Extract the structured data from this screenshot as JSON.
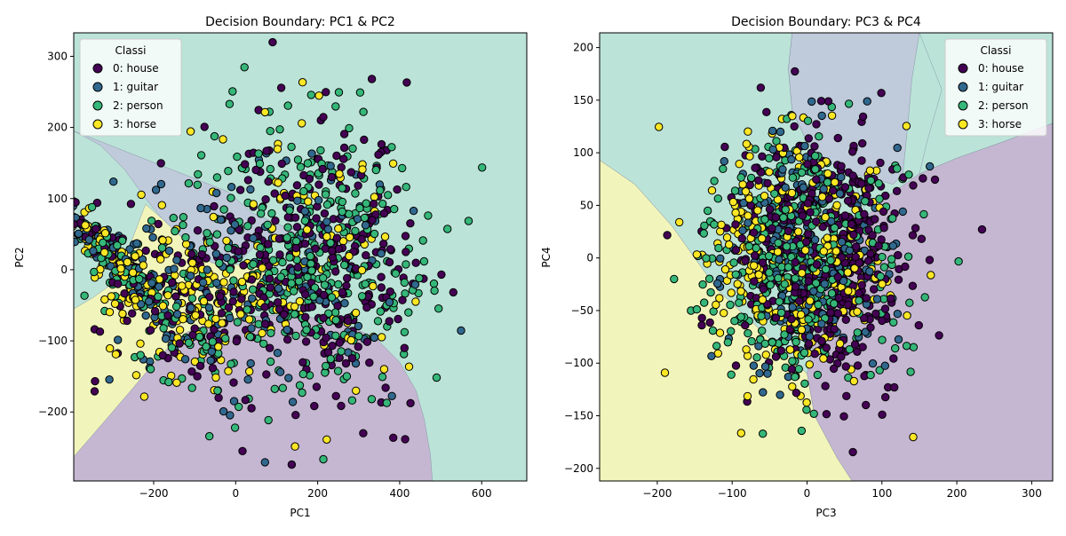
{
  "chart_data": [
    {
      "type": "scatter",
      "title": "Decision Boundary: PC1 & PC2",
      "xlabel": "PC1",
      "ylabel": "PC2",
      "xlim": [
        -395,
        710
      ],
      "ylim": [
        -297,
        333
      ],
      "xticks": [
        -200,
        0,
        200,
        400,
        600
      ],
      "yticks": [
        -200,
        -100,
        0,
        100,
        200,
        300
      ],
      "grid": false,
      "legend": {
        "title": "Classi",
        "placement": "top-left",
        "entries": [
          "0: house",
          "1: guitar",
          "2: person",
          "3: horse"
        ]
      },
      "class_colors": [
        "#440154",
        "#31688e",
        "#35b779",
        "#fde725"
      ],
      "region_colors": [
        "#c5b7d2",
        "#bfcadb",
        "#bce3d8",
        "#f2f5bb"
      ],
      "boundary_regions": {
        "0: house": [
          [
            -395,
            -263
          ],
          [
            -320,
            -213
          ],
          [
            -250,
            -166
          ],
          [
            -180,
            -118
          ],
          [
            -120,
            -88
          ],
          [
            -50,
            -72
          ],
          [
            30,
            -66
          ],
          [
            120,
            -63
          ],
          [
            200,
            -68
          ],
          [
            270,
            -78
          ],
          [
            340,
            -95
          ],
          [
            400,
            -130
          ],
          [
            440,
            -170
          ],
          [
            460,
            -210
          ],
          [
            475,
            -260
          ],
          [
            480,
            -297
          ],
          [
            -395,
            -297
          ]
        ],
        "1: guitar": [
          [
            -395,
            195
          ],
          [
            -330,
            175
          ],
          [
            -270,
            140
          ],
          [
            -220,
            100
          ],
          [
            -180,
            72
          ],
          [
            -140,
            50
          ],
          [
            -100,
            28
          ],
          [
            -60,
            10
          ],
          [
            -20,
            5
          ],
          [
            20,
            18
          ],
          [
            60,
            40
          ],
          [
            120,
            46
          ],
          [
            180,
            40
          ],
          [
            240,
            35
          ],
          [
            280,
            38
          ],
          [
            120,
            60
          ],
          [
            40,
            80
          ],
          [
            -20,
            110
          ],
          [
            -395,
            195
          ]
        ],
        "3: horse": [
          [
            -395,
            -263
          ],
          [
            -320,
            -213
          ],
          [
            -250,
            -166
          ],
          [
            -180,
            -118
          ],
          [
            -120,
            -88
          ],
          [
            -50,
            -72
          ],
          [
            30,
            -66
          ],
          [
            60,
            -45
          ],
          [
            80,
            -10
          ],
          [
            40,
            10
          ],
          [
            -20,
            5
          ],
          [
            -60,
            10
          ],
          [
            -100,
            28
          ],
          [
            -140,
            50
          ],
          [
            -180,
            72
          ],
          [
            -220,
            92
          ],
          [
            -290,
            -15
          ],
          [
            -350,
            -40
          ],
          [
            -395,
            -55
          ]
        ]
      },
      "point_count_estimate": 1400
    },
    {
      "type": "scatter",
      "title": "Decision Boundary: PC3 & PC4",
      "xlabel": "PC3",
      "ylabel": "PC4",
      "xlim": [
        -277,
        328
      ],
      "ylim": [
        -212,
        214
      ],
      "xticks": [
        -200,
        -100,
        0,
        100,
        200,
        300
      ],
      "yticks": [
        -200,
        -150,
        -100,
        -50,
        0,
        50,
        100,
        150,
        200
      ],
      "grid": false,
      "legend": {
        "title": "Classi",
        "placement": "top-right",
        "entries": [
          "0: house",
          "1: guitar",
          "2: person",
          "3: horse"
        ]
      },
      "class_colors": [
        "#440154",
        "#31688e",
        "#35b779",
        "#fde725"
      ],
      "region_colors": [
        "#c5b7d2",
        "#bfcadb",
        "#bce3d8",
        "#f2f5bb"
      ],
      "boundary_regions": {
        "0: house": [
          [
            328,
            128
          ],
          [
            260,
            110
          ],
          [
            200,
            95
          ],
          [
            150,
            80
          ],
          [
            110,
            60
          ],
          [
            80,
            40
          ],
          [
            50,
            10
          ],
          [
            20,
            -40
          ],
          [
            0,
            -110
          ],
          [
            10,
            -150
          ],
          [
            40,
            -190
          ],
          [
            60,
            -212
          ],
          [
            328,
            -212
          ]
        ],
        "1: guitar": [
          [
            -20,
            214
          ],
          [
            -25,
            180
          ],
          [
            -20,
            140
          ],
          [
            0,
            110
          ],
          [
            30,
            90
          ],
          [
            60,
            80
          ],
          [
            90,
            75
          ],
          [
            115,
            70
          ],
          [
            128,
            80
          ],
          [
            135,
            130
          ],
          [
            140,
            170
          ],
          [
            150,
            214
          ]
        ],
        "2: person": [
          [
            -277,
            214
          ],
          [
            -20,
            214
          ],
          [
            -25,
            180
          ],
          [
            -20,
            140
          ],
          [
            0,
            110
          ],
          [
            30,
            90
          ],
          [
            60,
            80
          ],
          [
            80,
            40
          ],
          [
            50,
            10
          ],
          [
            20,
            -40
          ],
          [
            0,
            -110
          ],
          [
            -60,
            -70
          ],
          [
            -120,
            -30
          ],
          [
            -180,
            30
          ],
          [
            -230,
            70
          ],
          [
            -277,
            93
          ]
        ],
        "2b: person": [
          [
            150,
            214
          ],
          [
            328,
            214
          ],
          [
            328,
            128
          ],
          [
            260,
            110
          ],
          [
            200,
            95
          ],
          [
            150,
            80
          ],
          [
            160,
            110
          ],
          [
            180,
            160
          ]
        ],
        "3: horse": [
          [
            -277,
            93
          ],
          [
            -230,
            70
          ],
          [
            -180,
            30
          ],
          [
            -120,
            -30
          ],
          [
            -60,
            -70
          ],
          [
            0,
            -110
          ],
          [
            10,
            -150
          ],
          [
            40,
            -190
          ],
          [
            60,
            -212
          ],
          [
            -277,
            -212
          ]
        ]
      },
      "point_count_estimate": 1400
    }
  ]
}
